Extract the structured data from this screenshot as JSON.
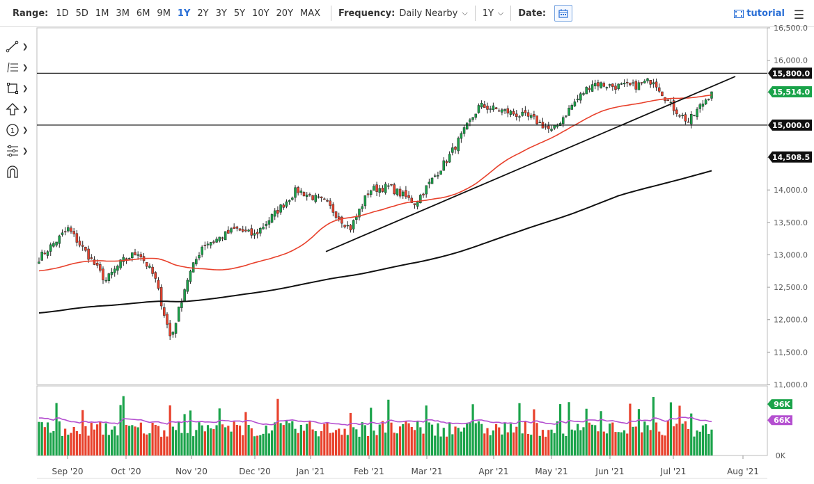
{
  "toolbar": {
    "range_label": "Range:",
    "ranges": [
      "1D",
      "5D",
      "1M",
      "3M",
      "6M",
      "9M",
      "1Y",
      "2Y",
      "3Y",
      "5Y",
      "10Y",
      "20Y",
      "MAX"
    ],
    "selected_range": "1Y",
    "frequency_label": "Frequency:",
    "frequency_value": "Daily Nearby",
    "period_value": "1Y",
    "date_label": "Date:",
    "tutorial_label": "tutorial"
  },
  "colors": {
    "up": "#1aa34a",
    "down": "#e8412c",
    "ma50": "#e8412c",
    "ma200": "#111111",
    "volume_avg": "#b44fd0",
    "accent": "#2a6fd6"
  },
  "side_tools": [
    "line-tool-icon",
    "fib-tool-icon",
    "shape-tool-icon",
    "arrow-tool-icon",
    "counter-tool-icon",
    "pattern-tool-icon",
    "magnet-icon"
  ],
  "chart_data": {
    "type": "candlestick",
    "price_axis": {
      "ylim": [
        11000,
        16500
      ],
      "ticks": [
        "16,500.0",
        "16,000.0",
        "15,500.0",
        "15,000.0",
        "14,500.0",
        "14,000.0",
        "13,500.0",
        "13,000.0",
        "12,500.0",
        "12,000.0",
        "11,500.0",
        "11,000.0"
      ]
    },
    "x_labels": [
      "Sep '20",
      "Oct '20",
      "Nov '20",
      "Dec '20",
      "Jan '21",
      "Feb '21",
      "Mar '21",
      "Apr '21",
      "May '21",
      "Jun '21",
      "Jul '21",
      "Aug '21"
    ],
    "price_tags": [
      {
        "label": "15,800.0",
        "value": 15800,
        "style": "dark-line"
      },
      {
        "label": "15,514.0",
        "value": 15514,
        "style": "green"
      },
      {
        "label": "15,000.0",
        "value": 15000,
        "style": "dark-line"
      },
      {
        "label": "14,508.5",
        "value": 14508.5,
        "style": "dark"
      }
    ],
    "horizontal_lines": [
      15800,
      15000
    ],
    "trend_line": {
      "from": [
        "Dec '20",
        13050
      ],
      "to": [
        "Jul '21",
        15750
      ]
    },
    "anchor_closes": [
      [
        "Sep '20",
        12950
      ],
      [
        "Sep '20",
        13400
      ],
      [
        "Sep '20",
        13000
      ],
      [
        "Oct '20",
        12600
      ],
      [
        "Oct '20",
        12900
      ],
      [
        "Oct '20",
        13050
      ],
      [
        "Oct '20",
        12650
      ],
      [
        "Nov '20",
        11700
      ],
      [
        "Nov '20",
        12600
      ],
      [
        "Nov '20",
        13150
      ],
      [
        "Nov '20",
        13250
      ],
      [
        "Dec '20",
        13400
      ],
      [
        "Dec '20",
        13300
      ],
      [
        "Dec '20",
        13600
      ],
      [
        "Jan '21",
        14000
      ],
      [
        "Jan '21",
        13800
      ],
      [
        "Feb '21",
        13400
      ],
      [
        "Feb '21",
        14000
      ],
      [
        "Feb '21",
        14050
      ],
      [
        "Mar '21",
        13800
      ],
      [
        "Mar '21",
        14500
      ],
      [
        "Apr '21",
        15300
      ],
      [
        "Apr '21",
        15200
      ],
      [
        "May '21",
        15100
      ],
      [
        "May '21",
        14900
      ],
      [
        "May '21",
        15300
      ],
      [
        "Jun '21",
        15650
      ],
      [
        "Jun '21",
        15600
      ],
      [
        "Jun '21",
        15600
      ],
      [
        "Jul '21",
        15700
      ],
      [
        "Jul '21",
        15300
      ],
      [
        "Jul '21",
        15050
      ],
      [
        "Jul '21",
        15514
      ]
    ],
    "volume_axis": {
      "ticks": [
        "0K"
      ]
    },
    "volume_tags": [
      {
        "label": "96K",
        "value": 96,
        "style": "green"
      },
      {
        "label": "66K",
        "value": 66,
        "style": "purple"
      }
    ]
  }
}
